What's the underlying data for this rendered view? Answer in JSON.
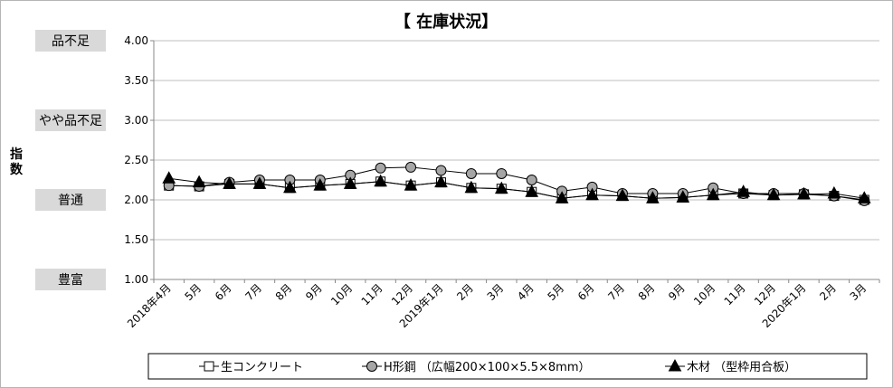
{
  "chart_data": {
    "type": "line",
    "title": "【 在庫状況】",
    "ylabel": "指数",
    "ylim": [
      1.0,
      4.0
    ],
    "yticks": [
      "1.00",
      "1.50",
      "2.00",
      "2.50",
      "3.00",
      "3.50",
      "4.00"
    ],
    "levels": [
      {
        "label": "品不足",
        "value": 4.0
      },
      {
        "label": "やや品不足",
        "value": 3.0
      },
      {
        "label": "普通",
        "value": 2.0
      },
      {
        "label": "豊富",
        "value": 1.0
      }
    ],
    "categories": [
      "2018年4月",
      "5月",
      "6月",
      "7月",
      "8月",
      "9月",
      "10月",
      "11月",
      "12月",
      "2019年1月",
      "2月",
      "3月",
      "4月",
      "5月",
      "6月",
      "7月",
      "8月",
      "9月",
      "10月",
      "11月",
      "12月",
      "2020年1月",
      "2月",
      "3月"
    ],
    "series": [
      {
        "name": "生コンクリート",
        "marker": "square",
        "color": "#000000",
        "values": [
          2.18,
          2.17,
          2.2,
          2.2,
          2.15,
          2.18,
          2.2,
          2.23,
          2.18,
          2.22,
          2.15,
          2.14,
          2.1,
          2.02,
          2.06,
          2.05,
          2.02,
          2.03,
          2.06,
          2.08,
          2.06,
          2.07,
          2.05,
          2.0
        ]
      },
      {
        "name": "H形鋼 （広幅200×100×5.5×8mm）",
        "marker": "circle",
        "color": "#000000",
        "values": [
          2.18,
          2.17,
          2.22,
          2.25,
          2.25,
          2.25,
          2.31,
          2.4,
          2.41,
          2.37,
          2.33,
          2.33,
          2.25,
          2.11,
          2.16,
          2.08,
          2.08,
          2.08,
          2.15,
          2.08,
          2.08,
          2.08,
          2.05,
          1.99
        ]
      },
      {
        "name": "木材 （型枠用合板）",
        "marker": "triangle",
        "color": "#000000",
        "values": [
          2.27,
          2.22,
          2.2,
          2.2,
          2.15,
          2.18,
          2.2,
          2.23,
          2.18,
          2.22,
          2.15,
          2.14,
          2.1,
          2.02,
          2.06,
          2.05,
          2.02,
          2.03,
          2.06,
          2.1,
          2.06,
          2.07,
          2.08,
          2.02
        ]
      }
    ],
    "grid": true,
    "legend_position": "bottom"
  }
}
